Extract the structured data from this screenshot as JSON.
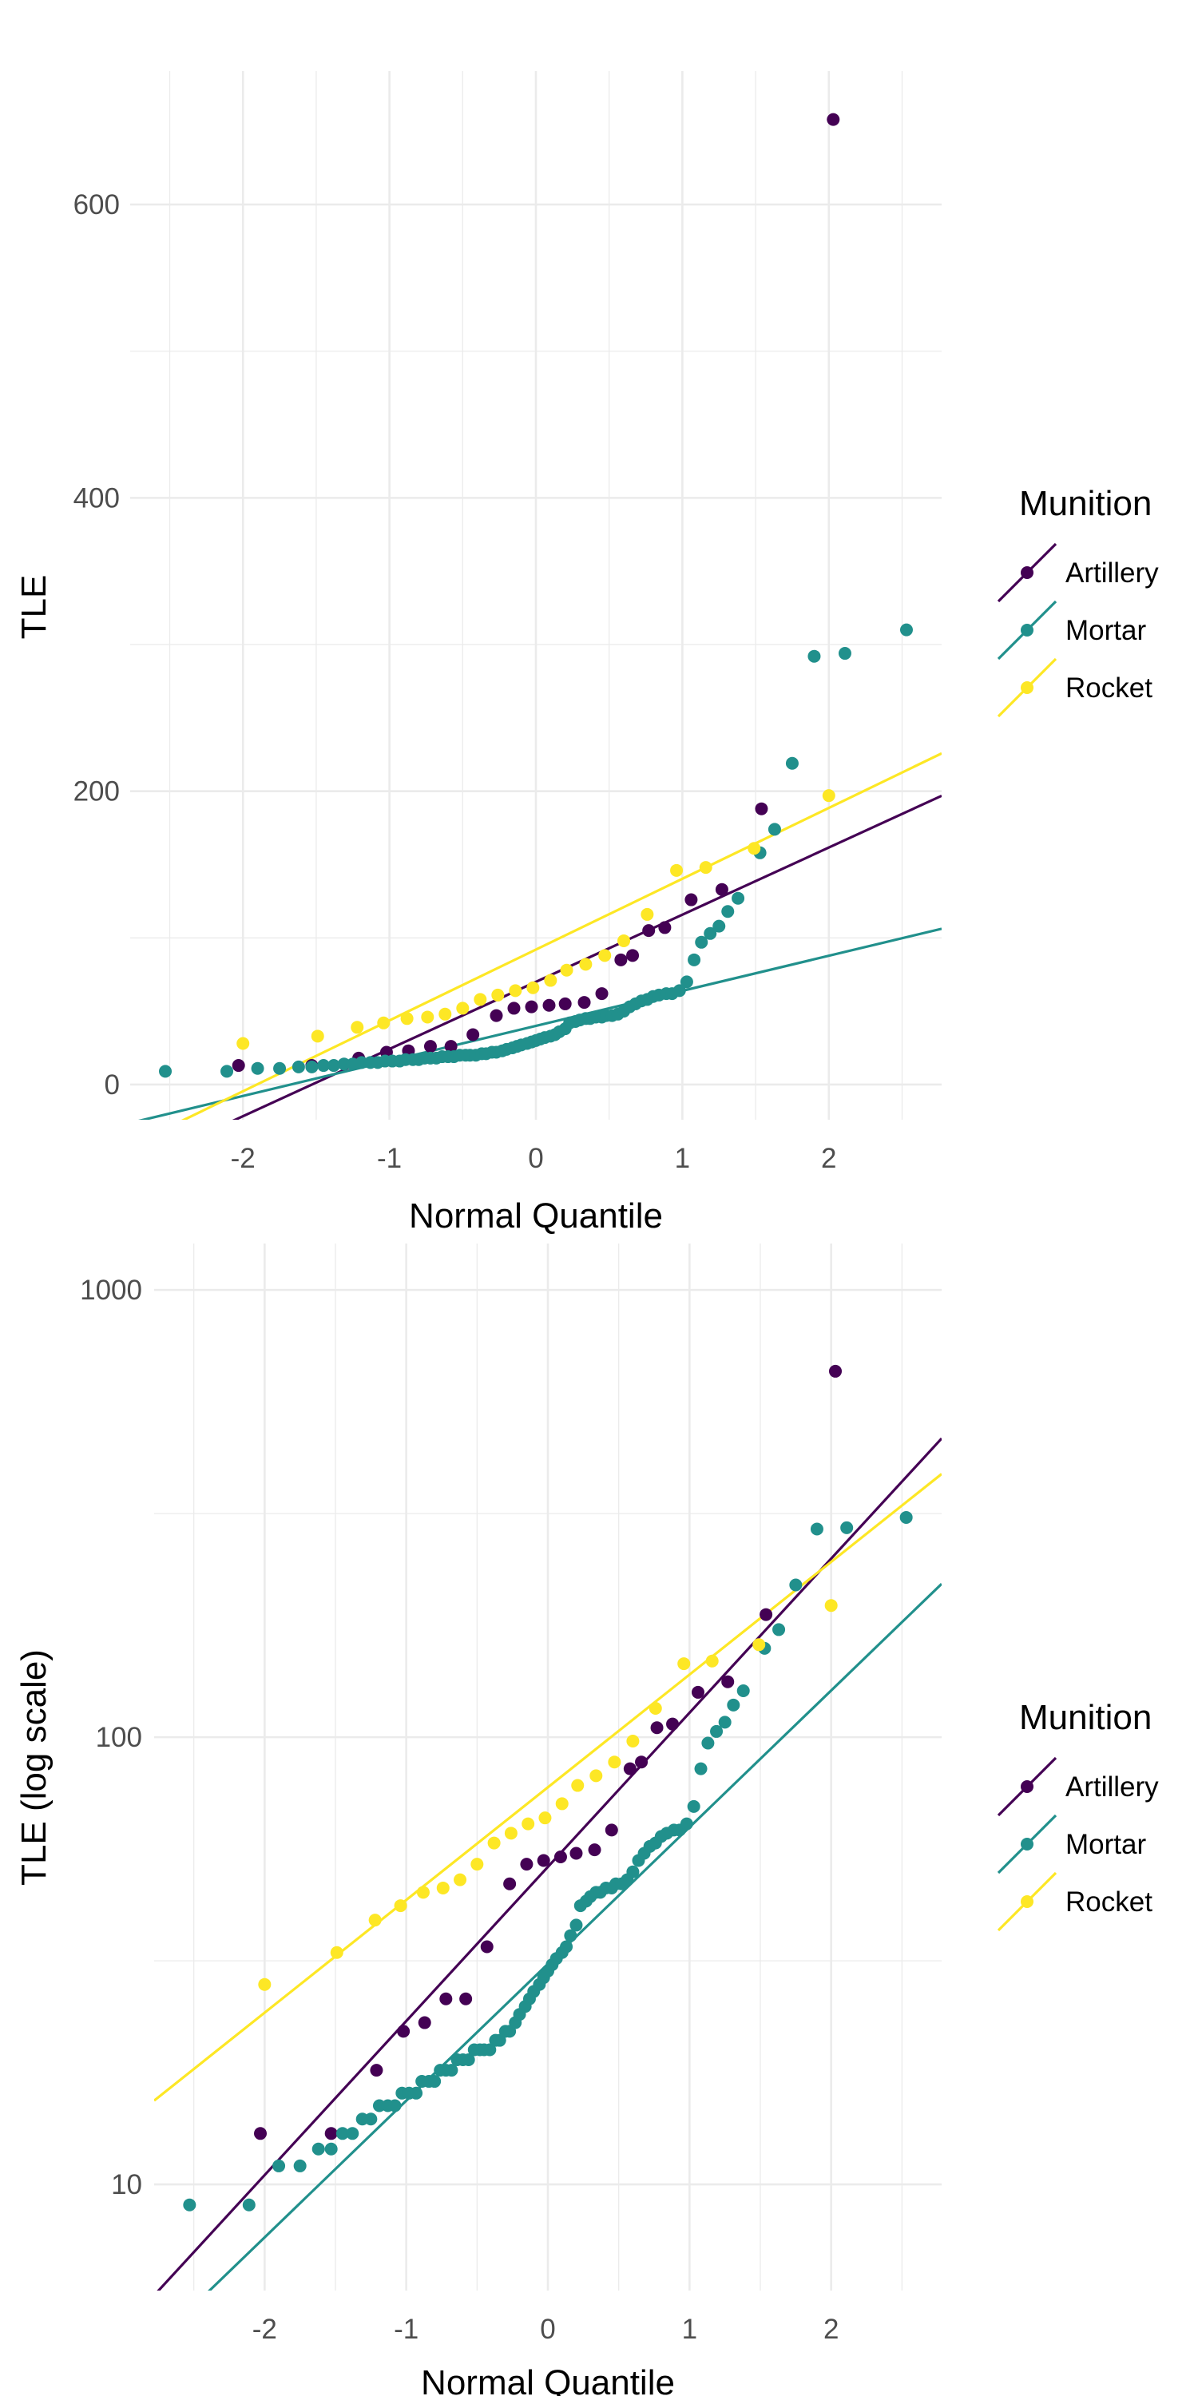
{
  "chart_data": [
    {
      "type": "scatter",
      "title": "",
      "xlabel": "Normal Quantile",
      "ylabel": "TLE",
      "yscale": "linear",
      "xlim": [
        -2.77,
        2.77
      ],
      "ylim": [
        -24,
        691
      ],
      "x_major_ticks": [
        -2,
        -1,
        0,
        1,
        2
      ],
      "x_tick_labels": [
        "-2",
        "-1",
        "0",
        "1",
        "2"
      ],
      "x_minor_ticks": [
        -2.5,
        -1.5,
        -0.5,
        0.5,
        1.5,
        2.5
      ],
      "y_major_ticks": [
        0,
        200,
        400,
        600
      ],
      "y_tick_labels": [
        "0",
        "200",
        "400",
        "600"
      ],
      "y_minor_ticks": [
        100,
        300,
        500
      ],
      "grid": true,
      "legend": {
        "title": "Munition",
        "position": "right"
      },
      "reference_lines": [
        {
          "series": "Artillery",
          "intercept": 70,
          "slope": 45.8
        },
        {
          "series": "Mortar",
          "intercept": 40,
          "slope": 23.9
        },
        {
          "series": "Rocket",
          "intercept": 92,
          "slope": 48.3
        }
      ]
    },
    {
      "type": "scatter",
      "title": "",
      "xlabel": "Normal Quantile",
      "ylabel": "TLE (log scale)",
      "yscale": "log10",
      "xlim": [
        -2.78,
        2.78
      ],
      "ylim": [
        5.79,
        1270
      ],
      "x_major_ticks": [
        -2,
        -1,
        0,
        1,
        2
      ],
      "x_tick_labels": [
        "-2",
        "-1",
        "0",
        "1",
        "2"
      ],
      "x_minor_ticks": [
        -2.5,
        -1.5,
        -0.5,
        0.5,
        1.5,
        2.5
      ],
      "y_major_ticks": [
        10,
        100,
        1000
      ],
      "y_tick_labels": [
        "10",
        "100",
        "1000"
      ],
      "y_minor_ticks": [
        31.62,
        316.2
      ],
      "grid": true,
      "legend": {
        "title": "Munition",
        "position": "right"
      },
      "reference_lines": [
        {
          "series": "Artillery",
          "intercept_log10": 1.71,
          "slope_log10": 0.3446
        },
        {
          "series": "Mortar",
          "intercept_log10": 1.493,
          "slope_log10": 0.3057
        },
        {
          "series": "Rocket",
          "intercept_log10": 1.888,
          "slope_log10": 0.252
        }
      ]
    }
  ],
  "series": [
    {
      "name": "Artillery",
      "color": "#440154",
      "points": [
        [
          -2.03,
          13
        ],
        [
          -1.53,
          13
        ],
        [
          -1.21,
          18
        ],
        [
          -1.02,
          22
        ],
        [
          -0.87,
          23
        ],
        [
          -0.72,
          26
        ],
        [
          -0.58,
          26
        ],
        [
          -0.43,
          34
        ],
        [
          -0.27,
          47
        ],
        [
          -0.15,
          52
        ],
        [
          -0.03,
          53
        ],
        [
          0.09,
          54
        ],
        [
          0.2,
          55
        ],
        [
          0.33,
          56
        ],
        [
          0.45,
          62
        ],
        [
          0.58,
          85
        ],
        [
          0.66,
          88
        ],
        [
          0.77,
          105
        ],
        [
          0.88,
          107
        ],
        [
          1.06,
          126
        ],
        [
          1.27,
          133
        ],
        [
          1.54,
          188
        ],
        [
          2.03,
          658
        ]
      ]
    },
    {
      "name": "Mortar",
      "color": "#21908C",
      "points": [
        [
          -2.53,
          9
        ],
        [
          -2.11,
          9
        ],
        [
          -1.9,
          11
        ],
        [
          -1.75,
          11
        ],
        [
          -1.62,
          12
        ],
        [
          -1.53,
          12
        ],
        [
          -1.45,
          13
        ],
        [
          -1.38,
          13
        ],
        [
          -1.31,
          14
        ],
        [
          -1.25,
          14
        ],
        [
          -1.19,
          15
        ],
        [
          -1.13,
          15
        ],
        [
          -1.08,
          15
        ],
        [
          -1.03,
          16
        ],
        [
          -0.98,
          16
        ],
        [
          -0.93,
          16
        ],
        [
          -0.89,
          17
        ],
        [
          -0.84,
          17
        ],
        [
          -0.8,
          17
        ],
        [
          -0.76,
          18
        ],
        [
          -0.72,
          18
        ],
        [
          -0.68,
          18
        ],
        [
          -0.64,
          19
        ],
        [
          -0.6,
          19
        ],
        [
          -0.56,
          19
        ],
        [
          -0.52,
          20
        ],
        [
          -0.48,
          20
        ],
        [
          -0.45,
          20
        ],
        [
          -0.41,
          20
        ],
        [
          -0.37,
          21
        ],
        [
          -0.34,
          21
        ],
        [
          -0.3,
          22
        ],
        [
          -0.27,
          22
        ],
        [
          -0.23,
          23
        ],
        [
          -0.2,
          24
        ],
        [
          -0.16,
          25
        ],
        [
          -0.13,
          26
        ],
        [
          -0.1,
          27
        ],
        [
          -0.06,
          28
        ],
        [
          -0.03,
          29
        ],
        [
          0.0,
          30
        ],
        [
          0.03,
          31
        ],
        [
          0.06,
          32
        ],
        [
          0.1,
          33
        ],
        [
          0.13,
          34
        ],
        [
          0.16,
          36
        ],
        [
          0.2,
          38
        ],
        [
          0.23,
          42
        ],
        [
          0.27,
          43
        ],
        [
          0.3,
          44
        ],
        [
          0.34,
          45
        ],
        [
          0.37,
          45
        ],
        [
          0.41,
          46
        ],
        [
          0.45,
          46
        ],
        [
          0.48,
          47
        ],
        [
          0.52,
          47
        ],
        [
          0.56,
          48
        ],
        [
          0.6,
          50
        ],
        [
          0.64,
          53
        ],
        [
          0.68,
          55
        ],
        [
          0.72,
          57
        ],
        [
          0.76,
          58
        ],
        [
          0.8,
          60
        ],
        [
          0.84,
          61
        ],
        [
          0.89,
          62
        ],
        [
          0.93,
          62
        ],
        [
          0.98,
          64
        ],
        [
          1.03,
          70
        ],
        [
          1.08,
          85
        ],
        [
          1.13,
          97
        ],
        [
          1.19,
          103
        ],
        [
          1.25,
          108
        ],
        [
          1.31,
          118
        ],
        [
          1.38,
          127
        ],
        [
          1.53,
          158
        ],
        [
          1.63,
          174
        ],
        [
          1.75,
          219
        ],
        [
          1.9,
          292
        ],
        [
          2.11,
          294
        ],
        [
          2.53,
          310
        ]
      ]
    },
    {
      "name": "Rocket",
      "color": "#FDE725",
      "points": [
        [
          -2.0,
          28
        ],
        [
          -1.49,
          33
        ],
        [
          -1.22,
          39
        ],
        [
          -1.04,
          42
        ],
        [
          -0.88,
          45
        ],
        [
          -0.74,
          46
        ],
        [
          -0.62,
          48
        ],
        [
          -0.5,
          52
        ],
        [
          -0.38,
          58
        ],
        [
          -0.26,
          61
        ],
        [
          -0.14,
          64
        ],
        [
          -0.02,
          66
        ],
        [
          0.1,
          71
        ],
        [
          0.21,
          78
        ],
        [
          0.34,
          82
        ],
        [
          0.47,
          88
        ],
        [
          0.6,
          98
        ],
        [
          0.76,
          116
        ],
        [
          0.96,
          146
        ],
        [
          1.16,
          148
        ],
        [
          1.49,
          161
        ],
        [
          2.0,
          197
        ]
      ]
    }
  ]
}
